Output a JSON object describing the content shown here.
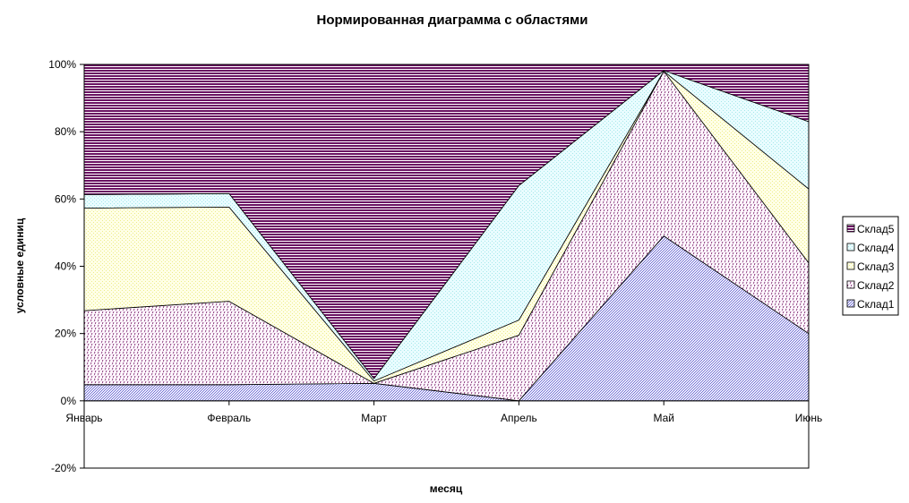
{
  "colors": {
    "frame": "#000000",
    "background": "#ffffff",
    "series": {
      "Склад1": {
        "fg": "#7272d0",
        "bg": "#ecebff"
      },
      "Склад2": {
        "fg": "#6a0a5a",
        "bg": "#fff8ff"
      },
      "Склад3": {
        "fg": "#ecec8a",
        "bg": "#ffffe6"
      },
      "Склад4": {
        "fg": "#a6e8ea",
        "bg": "#e9fcff"
      },
      "Склад5": {
        "fg": "#6a1262",
        "bg": "#ffffff"
      }
    }
  },
  "chart_data": {
    "type": "area",
    "stacked": "percent",
    "title": "Нормированная диаграмма с областями",
    "xlabel": "месяц",
    "ylabel": "условные единиц",
    "categories": [
      "Январь",
      "Февраль",
      "Март",
      "Апрель",
      "Май",
      "Июнь"
    ],
    "ylim": [
      -20,
      100
    ],
    "yticks": [
      -20,
      0,
      20,
      40,
      60,
      80,
      100
    ],
    "ytick_labels": [
      "-20%",
      "0%",
      "20%",
      "40%",
      "60%",
      "80%",
      "100%"
    ],
    "legend_position": "right",
    "legend_order": [
      "Склад5",
      "Склад4",
      "Склад3",
      "Склад2",
      "Склад1"
    ],
    "series": [
      {
        "name": "Склад1",
        "values": [
          4.8,
          4.8,
          5.2,
          0.0,
          49.0,
          20.0
        ]
      },
      {
        "name": "Склад2",
        "values": [
          22.0,
          24.8,
          0.0,
          19.5,
          49.0,
          21.0
        ]
      },
      {
        "name": "Склад3",
        "values": [
          30.5,
          28.0,
          0.7,
          4.5,
          0.0,
          22.0
        ]
      },
      {
        "name": "Склад4",
        "values": [
          4.0,
          4.0,
          0.7,
          40.0,
          0.2,
          20.0
        ]
      },
      {
        "name": "Склад5",
        "values": [
          38.7,
          38.4,
          93.4,
          36.0,
          1.8,
          17.0
        ]
      }
    ]
  }
}
